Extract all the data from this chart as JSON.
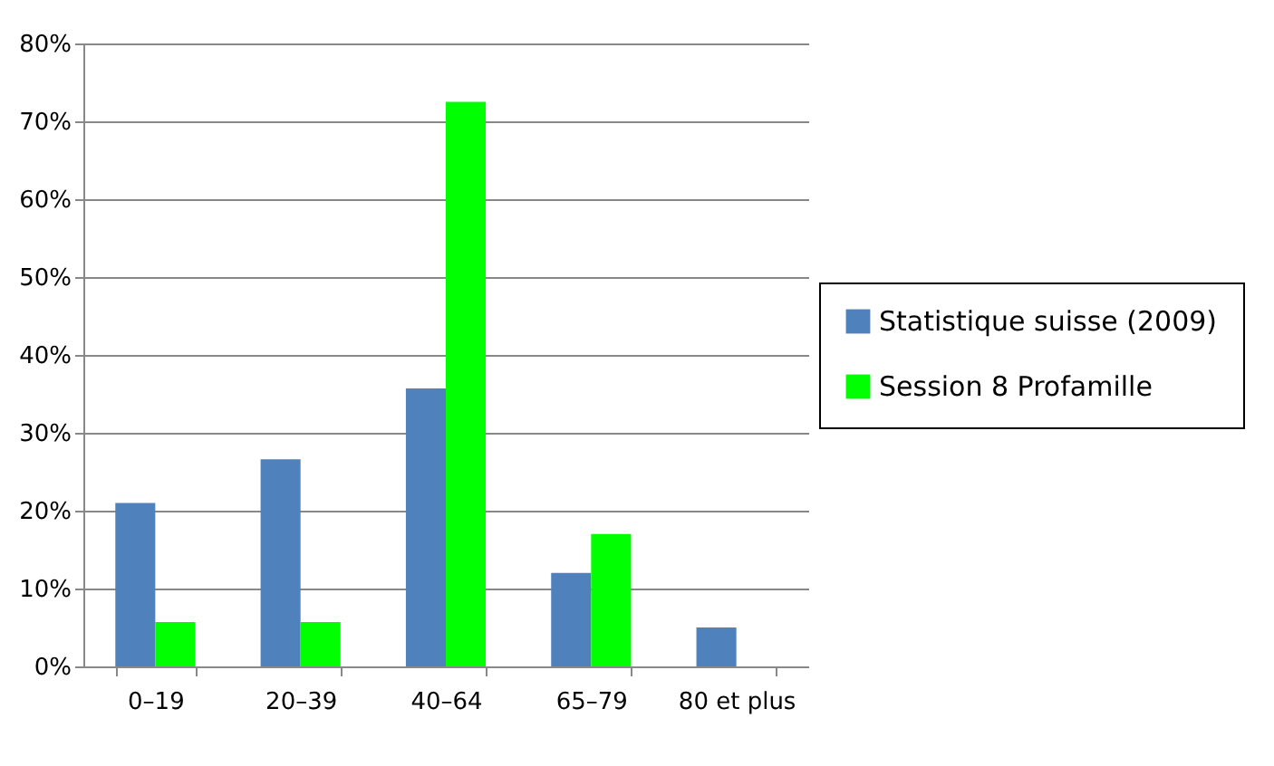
{
  "chart_data": {
    "type": "bar",
    "categories": [
      "0–19",
      "20–39",
      "40–64",
      "65–79",
      "80 et plus"
    ],
    "series": [
      {
        "name": "Statistique suisse (2009)",
        "color": "#4f81bd",
        "values": [
          21,
          26.6,
          35.7,
          12,
          5
        ]
      },
      {
        "name": "Session 8 Profamille",
        "color": "#00ff00",
        "values": [
          5.7,
          5.7,
          72.5,
          17,
          0
        ]
      }
    ],
    "ylim": [
      0,
      80
    ],
    "yticks": [
      {
        "value": 0,
        "label": "0%"
      },
      {
        "value": 10,
        "label": "10%"
      },
      {
        "value": 20,
        "label": "20%"
      },
      {
        "value": 30,
        "label": "30%"
      },
      {
        "value": 40,
        "label": "40%"
      },
      {
        "value": 50,
        "label": "50%"
      },
      {
        "value": 60,
        "label": "60%"
      },
      {
        "value": 70,
        "label": "70%"
      },
      {
        "value": 80,
        "label": "80%"
      }
    ],
    "grid": "y",
    "legend": "right"
  }
}
